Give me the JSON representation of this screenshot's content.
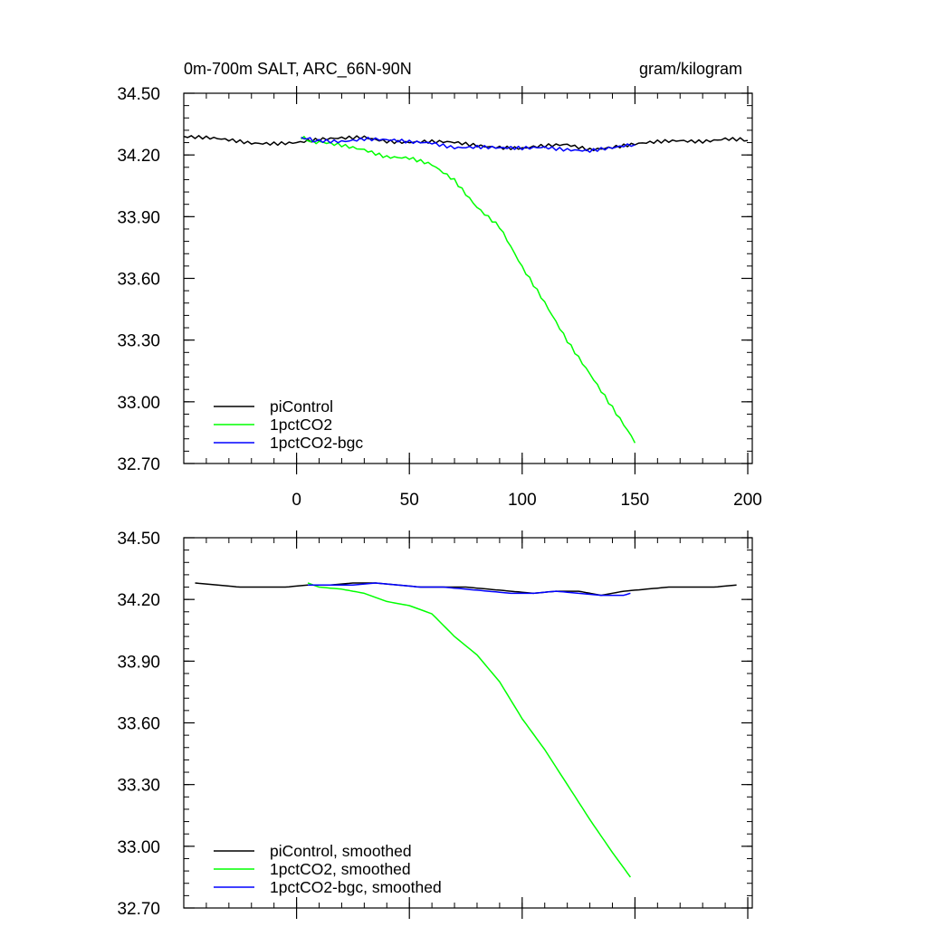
{
  "figure": {
    "title_left": "0m-700m SALT, ARC_66N-90N",
    "title_right": "gram/kilogram"
  },
  "chart_data": [
    {
      "type": "line",
      "title": "0m-700m SALT, ARC_66N-90N",
      "units": "gram/kilogram",
      "xlim": [
        -50,
        202
      ],
      "ylim": [
        32.7,
        34.5
      ],
      "x_ticks": [
        0,
        50,
        100,
        150,
        200
      ],
      "x_tick_labels": [
        "0",
        "50",
        "100",
        "150",
        "200"
      ],
      "y_ticks": [
        32.7,
        33.0,
        33.3,
        33.6,
        33.9,
        34.2,
        34.5
      ],
      "y_tick_labels": [
        "32.70",
        "33.00",
        "33.30",
        "33.60",
        "33.90",
        "34.20",
        "34.50"
      ],
      "legend_position": "bottom-left",
      "series": [
        {
          "name": "piControl",
          "color": "#000000",
          "x": [
            -50,
            -40,
            -30,
            -20,
            -10,
            0,
            10,
            20,
            30,
            40,
            50,
            60,
            70,
            80,
            90,
            100,
            110,
            120,
            130,
            140,
            150,
            160,
            170,
            180,
            190,
            200
          ],
          "values": [
            34.29,
            34.28,
            34.27,
            34.26,
            34.26,
            34.26,
            34.27,
            34.28,
            34.29,
            34.27,
            34.26,
            34.26,
            34.26,
            34.25,
            34.24,
            34.23,
            34.24,
            34.25,
            34.23,
            34.24,
            34.25,
            34.26,
            34.27,
            34.27,
            34.28,
            34.27
          ]
        },
        {
          "name": "1pctCO2",
          "color": "#00ff00",
          "x": [
            2,
            10,
            20,
            30,
            40,
            50,
            60,
            70,
            80,
            90,
            100,
            110,
            120,
            130,
            140,
            150
          ],
          "values": [
            34.28,
            34.26,
            34.25,
            34.23,
            34.19,
            34.18,
            34.15,
            34.08,
            33.95,
            33.85,
            33.65,
            33.48,
            33.3,
            33.14,
            32.97,
            32.8
          ]
        },
        {
          "name": "1pctCO2-bgc",
          "color": "#0000ff",
          "x": [
            2,
            10,
            20,
            30,
            40,
            50,
            60,
            70,
            80,
            90,
            100,
            110,
            120,
            130,
            140,
            150
          ],
          "values": [
            34.28,
            34.27,
            34.27,
            34.28,
            34.27,
            34.26,
            34.26,
            34.24,
            34.24,
            34.23,
            34.23,
            34.24,
            34.23,
            34.22,
            34.23,
            34.25
          ]
        }
      ]
    },
    {
      "type": "line",
      "xlim": [
        -50,
        202
      ],
      "ylim": [
        32.7,
        34.5
      ],
      "x_ticks": [
        0,
        50,
        100,
        150,
        200
      ],
      "x_tick_labels": [],
      "y_ticks": [
        32.7,
        33.0,
        33.3,
        33.6,
        33.9,
        34.2,
        34.5
      ],
      "y_tick_labels": [
        "32.70",
        "33.00",
        "33.30",
        "33.60",
        "33.90",
        "34.20",
        "34.50"
      ],
      "legend_position": "bottom-left",
      "series": [
        {
          "name": "piControl, smoothed",
          "color": "#000000",
          "x": [
            -45,
            -35,
            -25,
            -15,
            -5,
            5,
            15,
            25,
            35,
            45,
            55,
            65,
            75,
            85,
            95,
            105,
            115,
            125,
            135,
            145,
            155,
            165,
            175,
            185,
            195
          ],
          "values": [
            34.28,
            34.27,
            34.26,
            34.26,
            34.26,
            34.27,
            34.27,
            34.28,
            34.28,
            34.27,
            34.26,
            34.26,
            34.26,
            34.25,
            34.24,
            34.23,
            34.24,
            34.24,
            34.22,
            34.24,
            34.25,
            34.26,
            34.26,
            34.26,
            34.27
          ]
        },
        {
          "name": "1pctCO2, smoothed",
          "color": "#00ff00",
          "x": [
            5,
            10,
            20,
            30,
            40,
            50,
            60,
            70,
            80,
            90,
            100,
            110,
            120,
            130,
            140,
            148
          ],
          "values": [
            34.28,
            34.26,
            34.25,
            34.23,
            34.19,
            34.17,
            34.13,
            34.02,
            33.93,
            33.8,
            33.62,
            33.47,
            33.3,
            33.13,
            32.97,
            32.85
          ]
        },
        {
          "name": "1pctCO2-bgc, smoothed",
          "color": "#0000ff",
          "x": [
            5,
            15,
            25,
            35,
            45,
            55,
            65,
            75,
            85,
            95,
            105,
            115,
            125,
            135,
            145,
            148
          ],
          "values": [
            34.27,
            34.27,
            34.27,
            34.28,
            34.27,
            34.26,
            34.26,
            34.25,
            34.24,
            34.23,
            34.23,
            34.24,
            34.23,
            34.22,
            34.22,
            34.23
          ]
        }
      ]
    }
  ]
}
